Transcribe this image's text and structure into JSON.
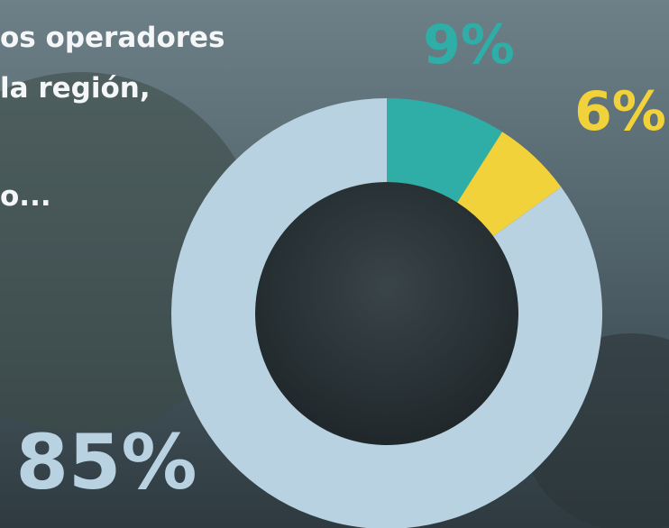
{
  "chart_data": {
    "type": "donut",
    "text_lines": [
      "os operadores",
      "la región,",
      "o..."
    ],
    "values": [
      9,
      6,
      85
    ],
    "value_labels": [
      "9%",
      "6%",
      "85%"
    ],
    "colors": [
      "#2fada7",
      "#f2d23a",
      "#b9d2e1"
    ]
  }
}
